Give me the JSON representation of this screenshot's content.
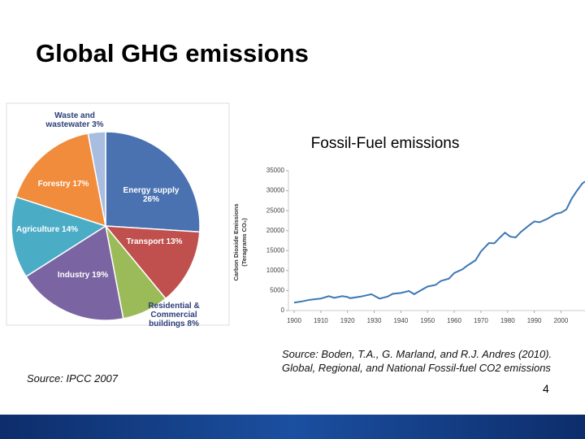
{
  "slide": {
    "title": "Global GHG emissions",
    "source_left": "Source: IPCC 2007",
    "source_right": "Source: Boden, T.A., G. Marland, and R.J. Andres (2010). Global, Regional, and National Fossil-fuel CO2 emissions",
    "page_number": "4"
  },
  "chart_data": [
    {
      "type": "pie",
      "categories": [
        "Energy supply",
        "Transport",
        "Residential & Commercial buildings",
        "Industry",
        "Agriculture",
        "Forestry",
        "Waste and wastewater"
      ],
      "values": [
        26,
        13,
        8,
        19,
        14,
        17,
        3
      ],
      "value_labels": [
        "26%",
        "13%",
        "8%",
        "19%",
        "14%",
        "17%",
        "3%"
      ],
      "colors": [
        "#4a72b0",
        "#c0504d",
        "#9bbb59",
        "#7b64a2",
        "#4bacc6",
        "#f08c3c",
        "#a9bde0"
      ]
    },
    {
      "type": "line",
      "title": "Fossil-Fuel emissions",
      "y_label": [
        "Carbon Dioxide Emissions",
        "(Teragrams CO₂)"
      ],
      "x": [
        1900,
        1903,
        1906,
        1910,
        1913,
        1915,
        1918,
        1920,
        1921,
        1925,
        1929,
        1932,
        1935,
        1937,
        1940,
        1943,
        1945,
        1946,
        1950,
        1953,
        1955,
        1958,
        1960,
        1963,
        1965,
        1968,
        1970,
        1973,
        1975,
        1977,
        1979,
        1981,
        1983,
        1985,
        1988,
        1990,
        1992,
        1995,
        1998,
        2000,
        2002,
        2004,
        2006,
        2008,
        2009
      ],
      "values": [
        2000,
        2300,
        2700,
        3000,
        3600,
        3200,
        3600,
        3400,
        3100,
        3500,
        4100,
        3000,
        3500,
        4200,
        4400,
        4900,
        4100,
        4500,
        6000,
        6400,
        7400,
        8000,
        9400,
        10300,
        11300,
        12600,
        14800,
        16900,
        16800,
        18200,
        19500,
        18500,
        18300,
        19700,
        21300,
        22300,
        22100,
        23000,
        24200,
        24500,
        25300,
        28000,
        30000,
        31800,
        32300
      ],
      "color": "#3b78b5",
      "xlim": [
        1900,
        2009
      ],
      "ylim": [
        0,
        35000
      ],
      "xticks": [
        1900,
        1910,
        1920,
        1930,
        1940,
        1950,
        1960,
        1970,
        1980,
        1990,
        2000
      ],
      "yticks": [
        0,
        5000,
        10000,
        15000,
        20000,
        25000,
        30000,
        35000
      ]
    }
  ]
}
